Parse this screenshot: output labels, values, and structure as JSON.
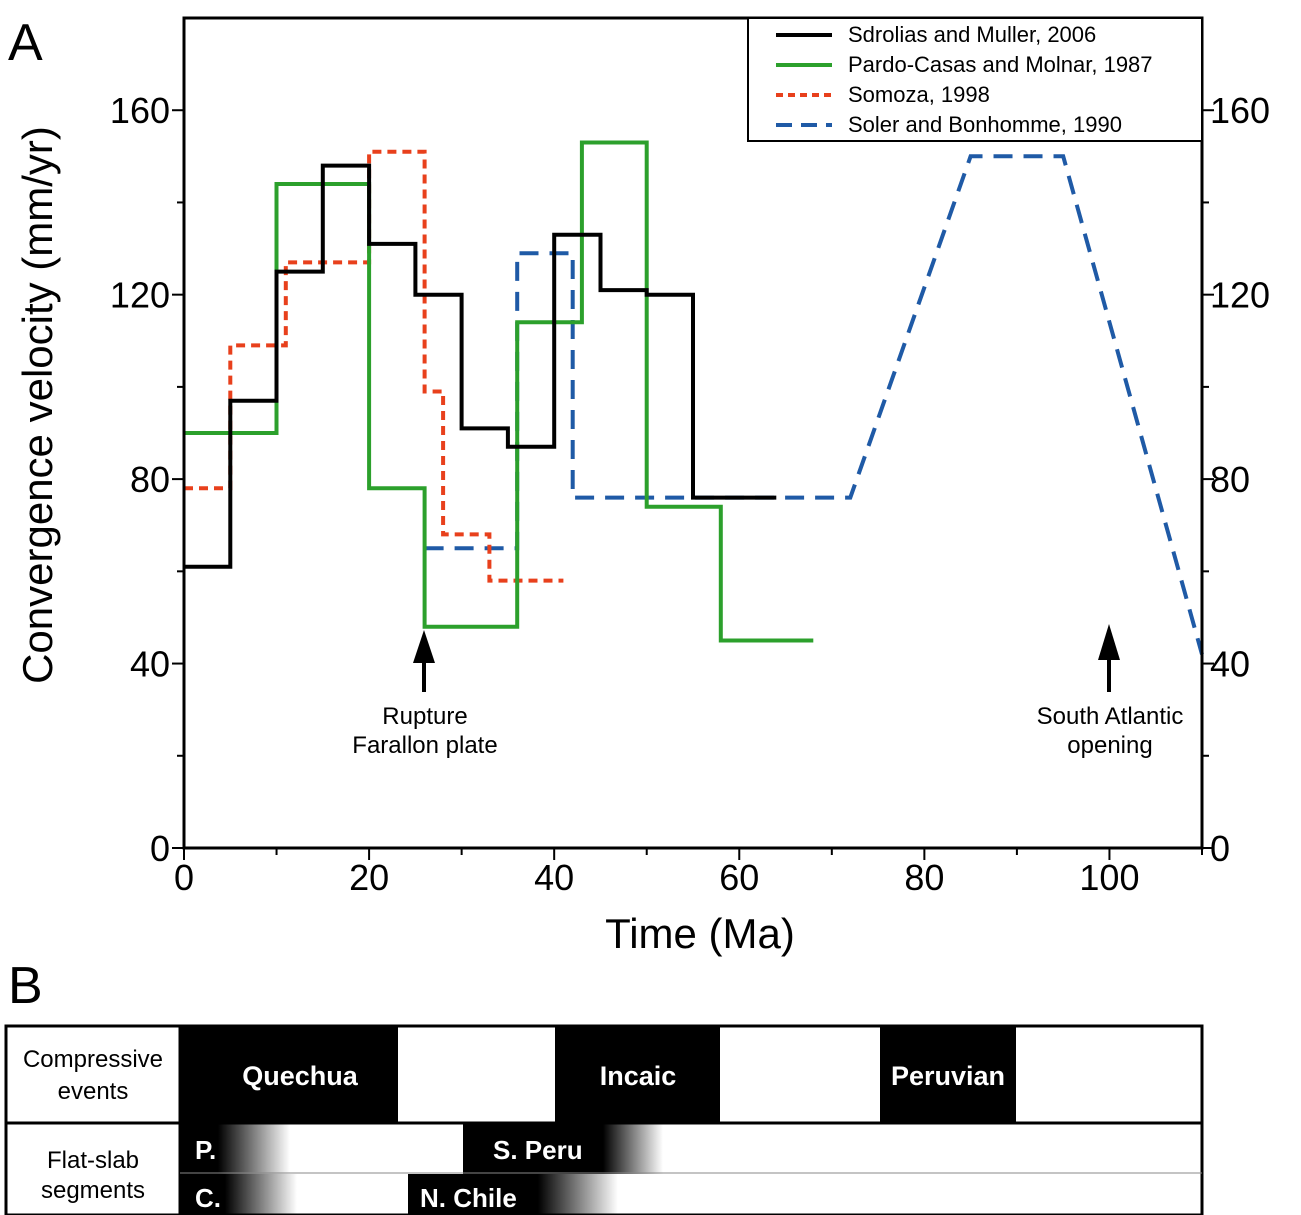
{
  "panel_a_label": "A",
  "panel_b_label": "B",
  "chart_data": {
    "type": "line",
    "xlabel": "Time (Ma)",
    "ylabel": "Convergence velocity (mm/yr)",
    "xlim": [
      0,
      110
    ],
    "ylim": [
      0,
      180
    ],
    "x_ticks": [
      0,
      20,
      40,
      60,
      80,
      100
    ],
    "y_ticks": [
      0,
      40,
      80,
      120,
      160
    ],
    "legend_position": "top-right",
    "series": [
      {
        "name": "Sdrolias and Muller, 2006",
        "color": "#000000",
        "dash": "solid",
        "points": [
          [
            0,
            61
          ],
          [
            5,
            61
          ],
          [
            5,
            97
          ],
          [
            10,
            97
          ],
          [
            10,
            125
          ],
          [
            15,
            125
          ],
          [
            15,
            148
          ],
          [
            20,
            148
          ],
          [
            20,
            131
          ],
          [
            25,
            131
          ],
          [
            25,
            120
          ],
          [
            30,
            120
          ],
          [
            30,
            91
          ],
          [
            35,
            91
          ],
          [
            35,
            87
          ],
          [
            40,
            87
          ],
          [
            40,
            133
          ],
          [
            45,
            133
          ],
          [
            45,
            121
          ],
          [
            50,
            121
          ],
          [
            50,
            120
          ],
          [
            55,
            120
          ],
          [
            55,
            76
          ],
          [
            64,
            76
          ]
        ]
      },
      {
        "name": "Pardo-Casas and Molnar, 1987",
        "color": "#2ca02c",
        "dash": "solid",
        "points": [
          [
            0,
            90
          ],
          [
            10,
            90
          ],
          [
            10,
            144
          ],
          [
            20,
            144
          ],
          [
            20,
            78
          ],
          [
            26,
            78
          ],
          [
            26,
            48
          ],
          [
            36,
            48
          ],
          [
            36,
            114
          ],
          [
            43,
            114
          ],
          [
            43,
            153
          ],
          [
            50,
            153
          ],
          [
            50,
            74
          ],
          [
            58,
            74
          ],
          [
            58,
            45
          ],
          [
            68,
            45
          ]
        ]
      },
      {
        "name": "Somoza, 1998",
        "color": "#e8401c",
        "dash": "short",
        "points": [
          [
            0,
            78
          ],
          [
            5,
            78
          ],
          [
            5,
            109
          ],
          [
            11,
            109
          ],
          [
            11,
            127
          ],
          [
            20,
            127
          ],
          [
            20,
            151
          ],
          [
            26,
            151
          ],
          [
            26,
            99
          ],
          [
            28,
            99
          ],
          [
            28,
            68
          ],
          [
            33,
            68
          ],
          [
            33,
            58
          ],
          [
            41,
            58
          ]
        ]
      },
      {
        "name": "Soler and Bonhomme, 1990",
        "color": "#1f5aa6",
        "dash": "long",
        "points": [
          [
            26,
            65
          ],
          [
            36,
            65
          ],
          [
            36,
            129
          ],
          [
            42,
            129
          ],
          [
            42,
            76
          ],
          [
            72,
            76
          ],
          [
            85,
            150
          ],
          [
            95,
            150
          ],
          [
            110,
            42
          ]
        ]
      }
    ],
    "annotations": [
      {
        "text_lines": [
          "Rupture",
          "Farallon plate"
        ],
        "x": 26
      },
      {
        "text_lines": [
          "South Atlantic",
          "opening"
        ],
        "x": 100
      }
    ]
  },
  "table_b": {
    "row1_label_lines": [
      "Compressive",
      "events"
    ],
    "row2_label_lines": [
      "Flat-slab",
      "segments"
    ],
    "events": [
      "Quechua",
      "Incaic",
      "Peruvian"
    ],
    "segments": [
      "P.",
      "S. Peru",
      "C.",
      "N. Chile"
    ]
  }
}
